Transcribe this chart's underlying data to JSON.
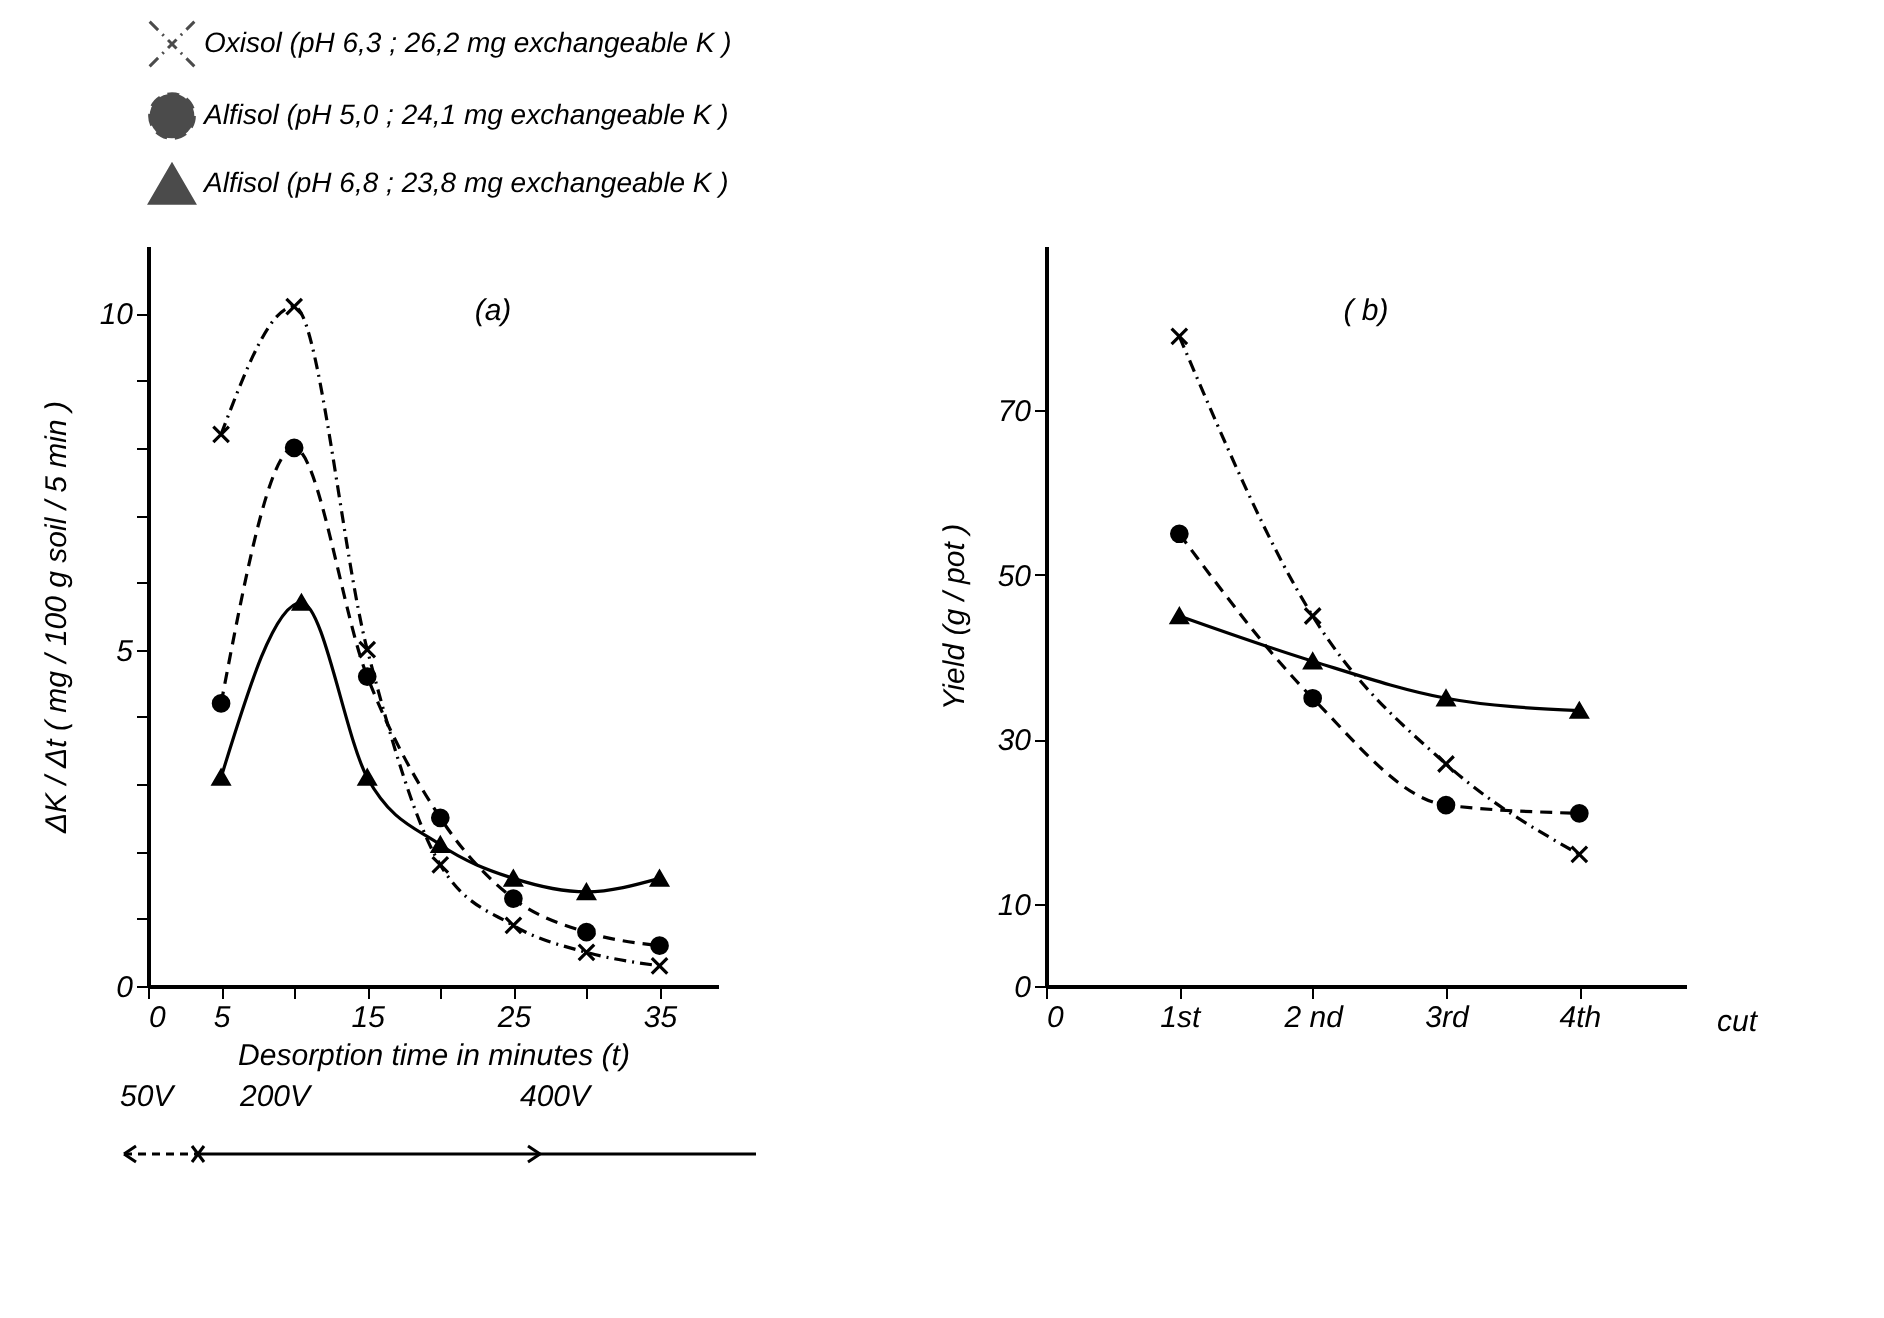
{
  "chart_data": [
    {
      "type": "line",
      "title": "(a)",
      "xlabel": "Desorption time in minutes (t)",
      "ylabel": "ΔK / Δt ( mg / 100 g soil / 5 min )",
      "xlim": [
        0,
        39
      ],
      "xticks": [
        0,
        5,
        {
          "value": 10,
          "label": null
        },
        15,
        {
          "value": 20,
          "label": null
        },
        25,
        {
          "value": 30,
          "label": null
        },
        35
      ],
      "ylim": [
        0,
        11
      ],
      "yticks": [
        0,
        {
          "value": 1,
          "label": null
        },
        {
          "value": 2,
          "label": null
        },
        {
          "value": 3,
          "label": null
        },
        {
          "value": 4,
          "label": null
        },
        5,
        {
          "value": 6,
          "label": null
        },
        {
          "value": 7,
          "label": null
        },
        {
          "value": 8,
          "label": null
        },
        {
          "value": 9,
          "label": null
        },
        10
      ],
      "legend": "top left",
      "grid": false,
      "series": [
        {
          "name": "Oxisol (pH 6,3 ; 26,2 mg exchangeable K )",
          "color": "#000000",
          "marker": "cross",
          "line_style": "dashdot",
          "x": [
            5,
            10,
            15,
            20,
            25,
            30,
            35
          ],
          "values": [
            8.2,
            10.1,
            5.0,
            1.8,
            0.9,
            0.5,
            0.3
          ]
        },
        {
          "name": "Alfisol (pH 5,0 ; 24,1 mg exchangeable K )",
          "color": "#000000",
          "marker": "circle",
          "line_style": "dashed",
          "x": [
            5,
            10,
            15,
            20,
            25,
            30,
            35
          ],
          "values": [
            4.2,
            8.0,
            4.6,
            2.5,
            1.3,
            0.8,
            0.6
          ]
        },
        {
          "name": "Alfisol (pH 6,8 ; 23,8 mg exchangeable K )",
          "color": "#000000",
          "marker": "triangle",
          "line_style": "solid",
          "x": [
            5,
            10.5,
            15,
            20,
            25,
            30,
            35
          ],
          "values": [
            3.1,
            5.7,
            3.1,
            2.1,
            1.6,
            1.4,
            1.6
          ]
        }
      ],
      "annotations": [
        "50V",
        "200V",
        "400V"
      ]
    },
    {
      "type": "line",
      "title": "( b)",
      "xlabel": "cut",
      "ylabel": "Yield (g / pot )",
      "categories": [
        "0",
        "1st",
        "2 nd",
        "3rd",
        "4th"
      ],
      "ylim": [
        0,
        90
      ],
      "yticks": [
        0,
        10,
        30,
        50,
        70
      ],
      "grid": false,
      "series": [
        {
          "name": "Oxisol (pH 6,3 ; 26,2 mg exchangeable K )",
          "color": "#000000",
          "marker": "cross",
          "line_style": "dashdot",
          "values": [
            null,
            79,
            45,
            27,
            16
          ]
        },
        {
          "name": "Alfisol (pH 5,0 ; 24,1 mg exchangeable K )",
          "color": "#000000",
          "marker": "circle",
          "line_style": "dashed",
          "values": [
            null,
            55,
            35,
            22,
            21
          ]
        },
        {
          "name": "Alfisol (pH 6,8 ; 23,8 mg exchangeable K )",
          "color": "#000000",
          "marker": "triangle",
          "line_style": "solid",
          "values": [
            null,
            45,
            39.5,
            35,
            33.5
          ]
        }
      ]
    }
  ]
}
